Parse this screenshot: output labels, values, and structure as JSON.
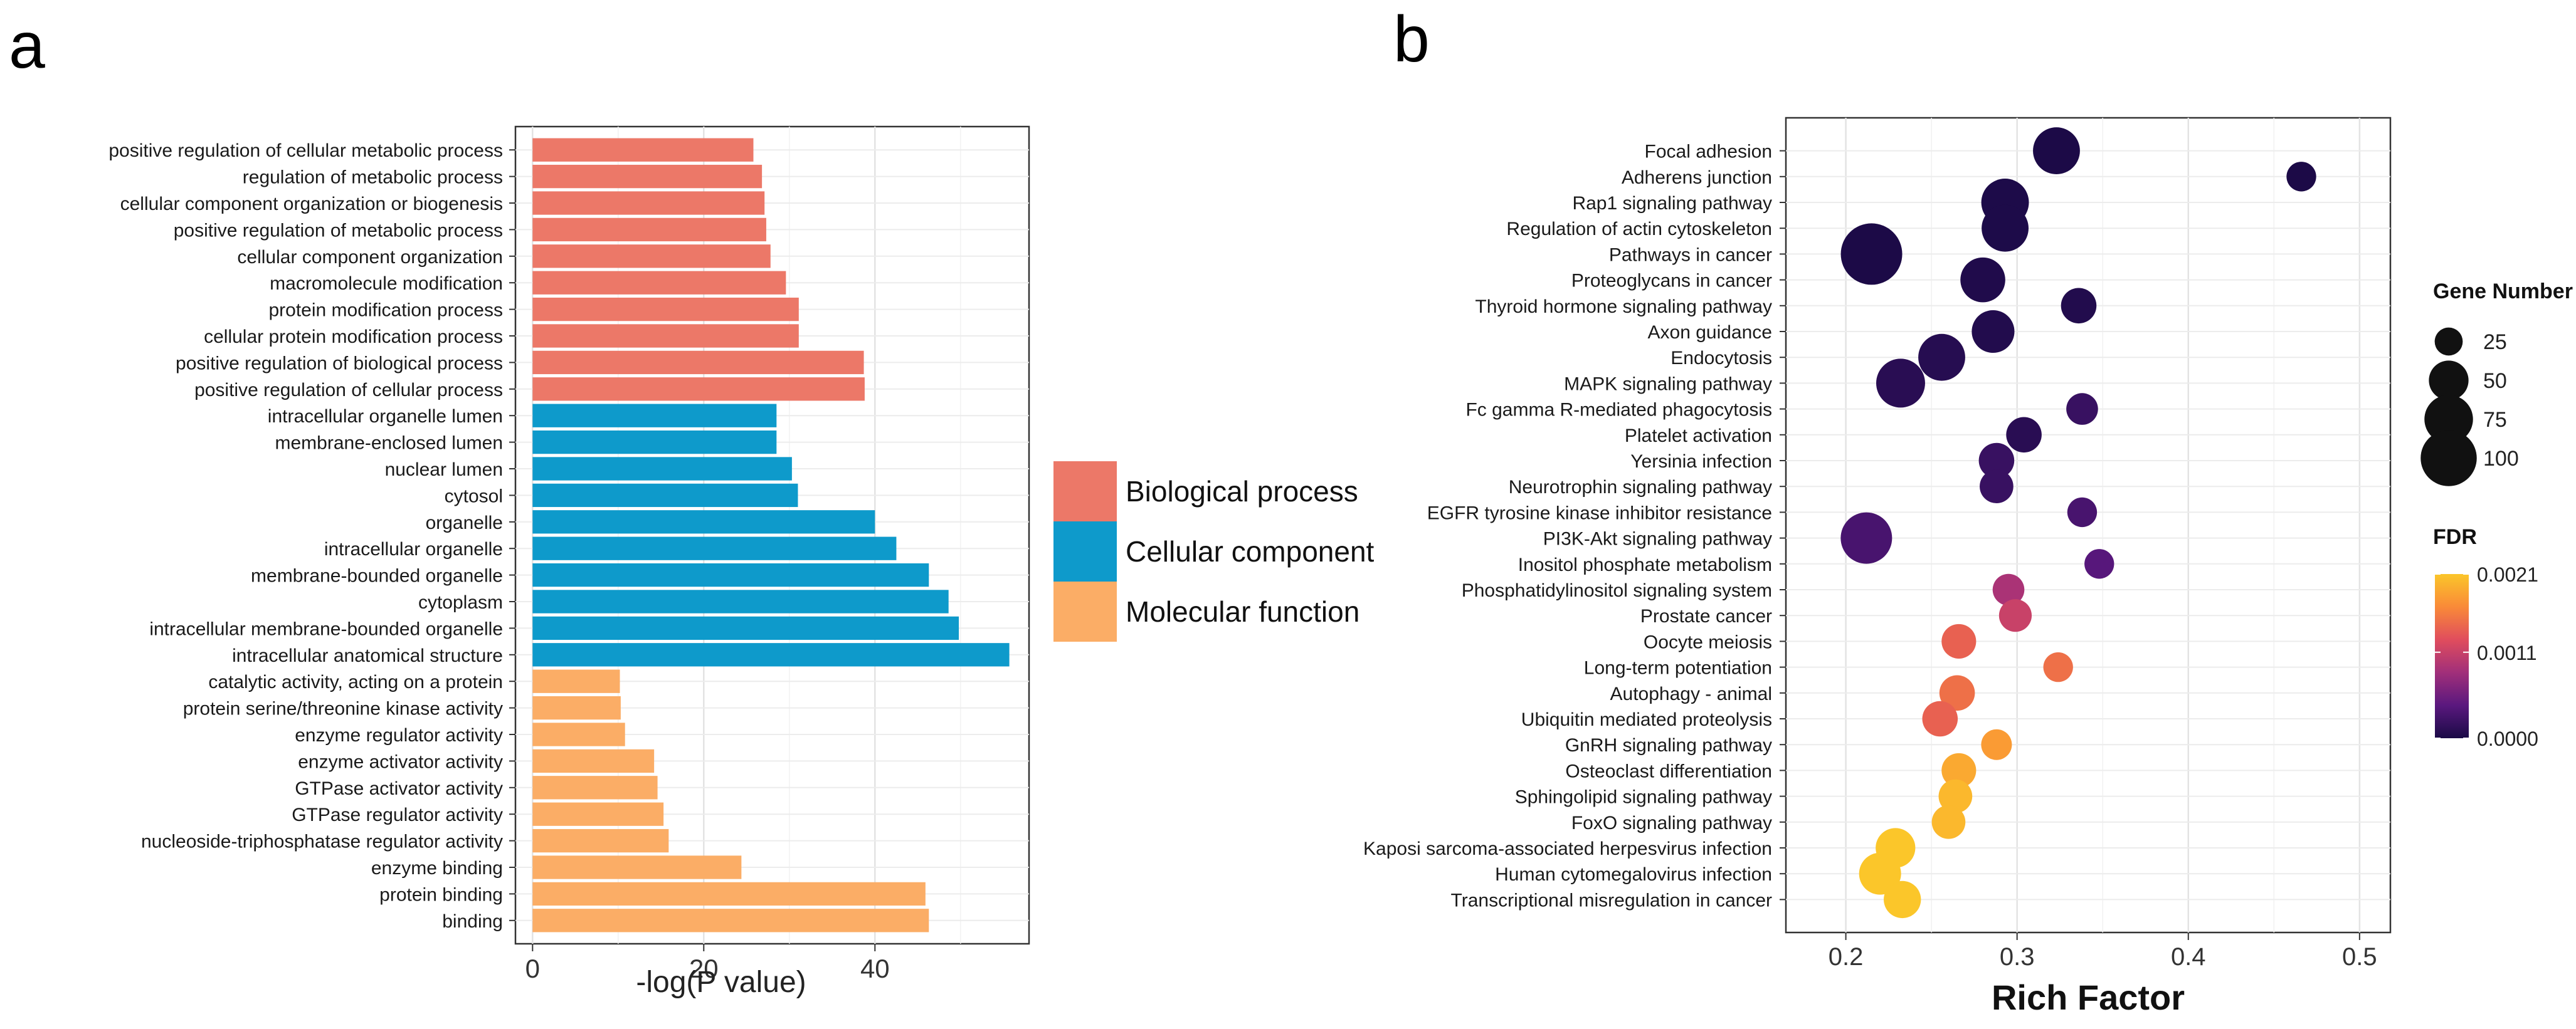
{
  "panel_labels": {
    "a": "a",
    "b": "b"
  },
  "chart_data": [
    {
      "type": "bar",
      "orientation": "horizontal",
      "panel": "a",
      "xlabel": "-log(P value)",
      "xlim": [
        -2,
        58
      ],
      "xticks": [
        0,
        20,
        40
      ],
      "grid": true,
      "legend_position": "right",
      "legend": [
        {
          "name": "Biological process",
          "color": "#EC7868"
        },
        {
          "name": "Cellular component",
          "color": "#0E9ACB"
        },
        {
          "name": "Molecular function",
          "color": "#FBAD66"
        }
      ],
      "bars": [
        {
          "label": "positive regulation of cellular metabolic process",
          "value": 25.8,
          "group": "Biological process"
        },
        {
          "label": "regulation of metabolic process",
          "value": 26.8,
          "group": "Biological process"
        },
        {
          "label": "cellular component organization or biogenesis",
          "value": 27.1,
          "group": "Biological process"
        },
        {
          "label": "positive regulation of metabolic process",
          "value": 27.3,
          "group": "Biological process"
        },
        {
          "label": "cellular component organization",
          "value": 27.8,
          "group": "Biological process"
        },
        {
          "label": "macromolecule modification",
          "value": 29.6,
          "group": "Biological process"
        },
        {
          "label": "protein modification process",
          "value": 31.1,
          "group": "Biological process"
        },
        {
          "label": "cellular protein modification process",
          "value": 31.1,
          "group": "Biological process"
        },
        {
          "label": "positive regulation of biological process",
          "value": 38.7,
          "group": "Biological process"
        },
        {
          "label": "positive regulation of cellular process",
          "value": 38.8,
          "group": "Biological process"
        },
        {
          "label": "intracellular organelle lumen",
          "value": 28.5,
          "group": "Cellular component"
        },
        {
          "label": "membrane-enclosed lumen",
          "value": 28.5,
          "group": "Cellular component"
        },
        {
          "label": "nuclear lumen",
          "value": 30.3,
          "group": "Cellular component"
        },
        {
          "label": "cytosol",
          "value": 31.0,
          "group": "Cellular component"
        },
        {
          "label": "organelle",
          "value": 40.0,
          "group": "Cellular component"
        },
        {
          "label": "intracellular organelle",
          "value": 42.5,
          "group": "Cellular component"
        },
        {
          "label": "membrane-bounded organelle",
          "value": 46.3,
          "group": "Cellular component"
        },
        {
          "label": "cytoplasm",
          "value": 48.6,
          "group": "Cellular component"
        },
        {
          "label": "intracellular membrane-bounded organelle",
          "value": 49.8,
          "group": "Cellular component"
        },
        {
          "label": "intracellular anatomical structure",
          "value": 55.7,
          "group": "Cellular component"
        },
        {
          "label": "catalytic activity, acting on a protein",
          "value": 10.2,
          "group": "Molecular function"
        },
        {
          "label": "protein serine/threonine kinase activity",
          "value": 10.3,
          "group": "Molecular function"
        },
        {
          "label": "enzyme regulator activity",
          "value": 10.8,
          "group": "Molecular function"
        },
        {
          "label": "enzyme activator activity",
          "value": 14.2,
          "group": "Molecular function"
        },
        {
          "label": "GTPase activator activity",
          "value": 14.6,
          "group": "Molecular function"
        },
        {
          "label": "GTPase regulator activity",
          "value": 15.3,
          "group": "Molecular function"
        },
        {
          "label": "nucleoside-triphosphatase regulator activity",
          "value": 15.9,
          "group": "Molecular function"
        },
        {
          "label": "enzyme binding",
          "value": 24.4,
          "group": "Molecular function"
        },
        {
          "label": "protein binding",
          "value": 45.9,
          "group": "Molecular function"
        },
        {
          "label": "binding",
          "value": 46.3,
          "group": "Molecular function"
        }
      ]
    },
    {
      "type": "scatter",
      "panel": "b",
      "xlabel": "Rich Factor",
      "xlim": [
        0.165,
        0.518
      ],
      "xticks": [
        0.2,
        0.3,
        0.4,
        0.5
      ],
      "xtick_labels": [
        "0.2",
        "0.3",
        "0.4",
        "0.5"
      ],
      "grid": true,
      "size_legend": {
        "title": "Gene Number",
        "values": [
          25,
          50,
          75,
          100
        ],
        "labels": [
          "25",
          "50",
          "75",
          "100"
        ]
      },
      "color_legend": {
        "title": "FDR",
        "range": [
          0.0,
          0.0021
        ],
        "ticks": [
          0.0021,
          0.0011,
          0.0
        ],
        "tick_labels": [
          "0.0021",
          "0.0011",
          "0.0000"
        ],
        "colormap": [
          "#1a0a46",
          "#5a187e",
          "#a12f7a",
          "#e04d5d",
          "#f98a38",
          "#fbc62a"
        ]
      },
      "points": [
        {
          "pathway": "Focal adhesion",
          "rich_factor": 0.323,
          "gene_number": 70,
          "fdr": 1e-05
        },
        {
          "pathway": "Adherens junction",
          "rich_factor": 0.466,
          "gene_number": 28,
          "fdr": 1e-05
        },
        {
          "pathway": "Rap1 signaling pathway",
          "rich_factor": 0.293,
          "gene_number": 72,
          "fdr": 2e-05
        },
        {
          "pathway": "Regulation of actin cytoskeleton",
          "rich_factor": 0.293,
          "gene_number": 70,
          "fdr": 2e-05
        },
        {
          "pathway": "Pathways in cancer",
          "rich_factor": 0.215,
          "gene_number": 120,
          "fdr": 1e-05
        },
        {
          "pathway": "Proteoglycans in cancer",
          "rich_factor": 0.28,
          "gene_number": 64,
          "fdr": 4e-05
        },
        {
          "pathway": "Thyroid hormone signaling pathway",
          "rich_factor": 0.336,
          "gene_number": 40,
          "fdr": 5e-05
        },
        {
          "pathway": "Axon guidance",
          "rich_factor": 0.286,
          "gene_number": 58,
          "fdr": 5e-05
        },
        {
          "pathway": "Endocytosis",
          "rich_factor": 0.256,
          "gene_number": 70,
          "fdr": 8e-05
        },
        {
          "pathway": "MAPK signaling pathway",
          "rich_factor": 0.232,
          "gene_number": 76,
          "fdr": 0.0001
        },
        {
          "pathway": "Fc gamma R-mediated phagocytosis",
          "rich_factor": 0.338,
          "gene_number": 32,
          "fdr": 0.0002
        },
        {
          "pathway": "Platelet activation",
          "rich_factor": 0.304,
          "gene_number": 40,
          "fdr": 0.0001
        },
        {
          "pathway": "Yersinia infection",
          "rich_factor": 0.288,
          "gene_number": 40,
          "fdr": 0.0002
        },
        {
          "pathway": "Neurotrophin signaling pathway",
          "rich_factor": 0.288,
          "gene_number": 36,
          "fdr": 0.0002
        },
        {
          "pathway": "EGFR tyrosine kinase inhibitor resistance",
          "rich_factor": 0.338,
          "gene_number": 28,
          "fdr": 0.0003
        },
        {
          "pathway": "PI3K-Akt signaling pathway",
          "rich_factor": 0.212,
          "gene_number": 84,
          "fdr": 0.0003
        },
        {
          "pathway": "Inositol phosphate metabolism",
          "rich_factor": 0.348,
          "gene_number": 28,
          "fdr": 0.0004
        },
        {
          "pathway": "Phosphatidylinositol signaling system",
          "rich_factor": 0.295,
          "gene_number": 32,
          "fdr": 0.0009
        },
        {
          "pathway": "Prostate cancer",
          "rich_factor": 0.299,
          "gene_number": 34,
          "fdr": 0.0011
        },
        {
          "pathway": "Oocyte meiosis",
          "rich_factor": 0.266,
          "gene_number": 38,
          "fdr": 0.0014
        },
        {
          "pathway": "Long-term potentiation",
          "rich_factor": 0.324,
          "gene_number": 28,
          "fdr": 0.0015
        },
        {
          "pathway": "Autophagy - animal",
          "rich_factor": 0.265,
          "gene_number": 40,
          "fdr": 0.0015
        },
        {
          "pathway": "Ubiquitin mediated proteolysis",
          "rich_factor": 0.255,
          "gene_number": 40,
          "fdr": 0.0014
        },
        {
          "pathway": "GnRH signaling pathway",
          "rich_factor": 0.288,
          "gene_number": 30,
          "fdr": 0.0018
        },
        {
          "pathway": "Osteoclast differentiation",
          "rich_factor": 0.266,
          "gene_number": 38,
          "fdr": 0.0019
        },
        {
          "pathway": "Sphingolipid signaling pathway",
          "rich_factor": 0.264,
          "gene_number": 36,
          "fdr": 0.002
        },
        {
          "pathway": "FoxO signaling pathway",
          "rich_factor": 0.26,
          "gene_number": 36,
          "fdr": 0.002
        },
        {
          "pathway": "Kaposi sarcoma-associated herpesvirus infection",
          "rich_factor": 0.229,
          "gene_number": 50,
          "fdr": 0.0021
        },
        {
          "pathway": "Human cytomegalovirus infection",
          "rich_factor": 0.22,
          "gene_number": 56,
          "fdr": 0.0021
        },
        {
          "pathway": "Transcriptional misregulation in cancer",
          "rich_factor": 0.233,
          "gene_number": 44,
          "fdr": 0.0021
        }
      ]
    }
  ]
}
